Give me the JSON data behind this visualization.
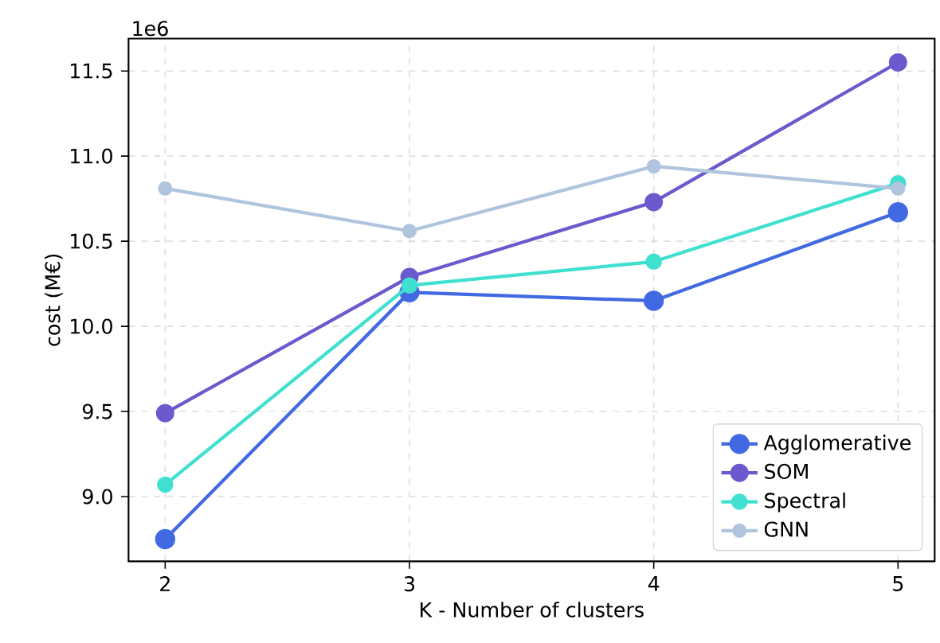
{
  "chart_data": {
    "type": "line",
    "xlabel": "K - Number of clusters",
    "ylabel": "cost (M€)",
    "annotations": [
      "1e6"
    ],
    "x": [
      2,
      3,
      4,
      5
    ],
    "series": [
      {
        "name": "Agglomerative",
        "color": "#4169e1",
        "values": [
          8.75,
          10.2,
          10.15,
          10.67
        ]
      },
      {
        "name": "SOM",
        "color": "#6a5acd",
        "values": [
          9.49,
          10.29,
          10.73,
          11.55
        ]
      },
      {
        "name": "Spectral",
        "color": "#40e0d0",
        "values": [
          9.07,
          10.24,
          10.38,
          10.84
        ]
      },
      {
        "name": "GNN",
        "color": "#b0c4de",
        "values": [
          10.81,
          10.56,
          10.94,
          10.81
        ]
      }
    ],
    "xlim": [
      1.85,
      5.15
    ],
    "ylim": [
      8.62,
      11.69
    ],
    "xticks": [
      2,
      3,
      4,
      5
    ],
    "yticks": [
      {
        "value": 9,
        "label": "9.0"
      },
      {
        "value": 9.5,
        "label": "9.5"
      },
      {
        "value": 10,
        "label": "10.0"
      },
      {
        "value": 10.5,
        "label": "10.5"
      },
      {
        "value": 11,
        "label": "11.0"
      },
      {
        "value": 11.5,
        "label": "11.5"
      }
    ],
    "grid": true,
    "legend": "bottom right",
    "marker": "circle",
    "line_style": "solid"
  }
}
